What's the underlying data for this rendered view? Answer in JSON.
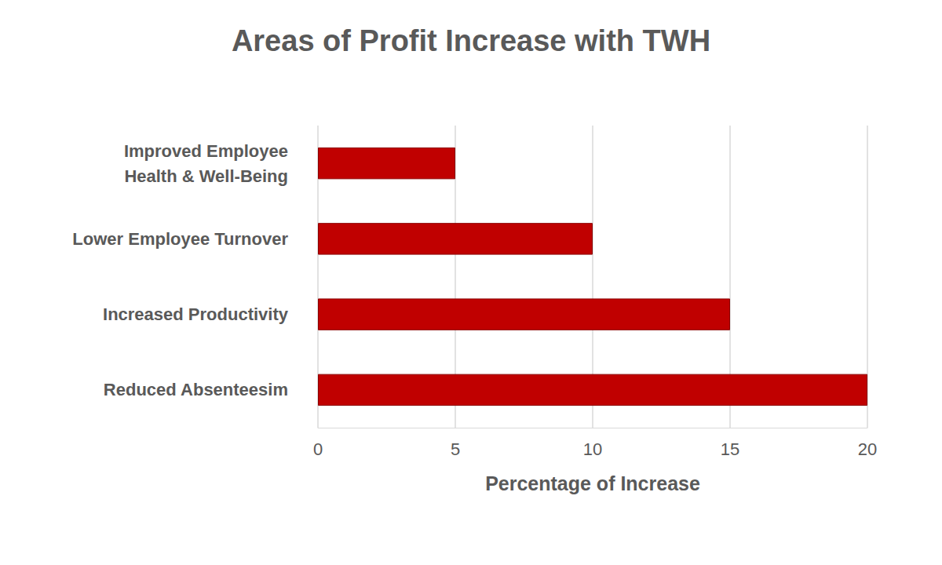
{
  "chart_data": {
    "type": "bar",
    "orientation": "horizontal",
    "title": "Areas of Profit Increase with TWH",
    "x_label": "Percentage of Increase",
    "categories": [
      "Improved Employee\nHealth & Well-Being",
      "Lower Employee Turnover",
      "Increased Productivity",
      "Reduced Absenteesim"
    ],
    "values": [
      5,
      10,
      15,
      20
    ],
    "color": "#c00000",
    "xlim": [
      0,
      20
    ],
    "xticks": [
      0,
      5,
      10,
      15,
      20
    ],
    "grid": true
  }
}
